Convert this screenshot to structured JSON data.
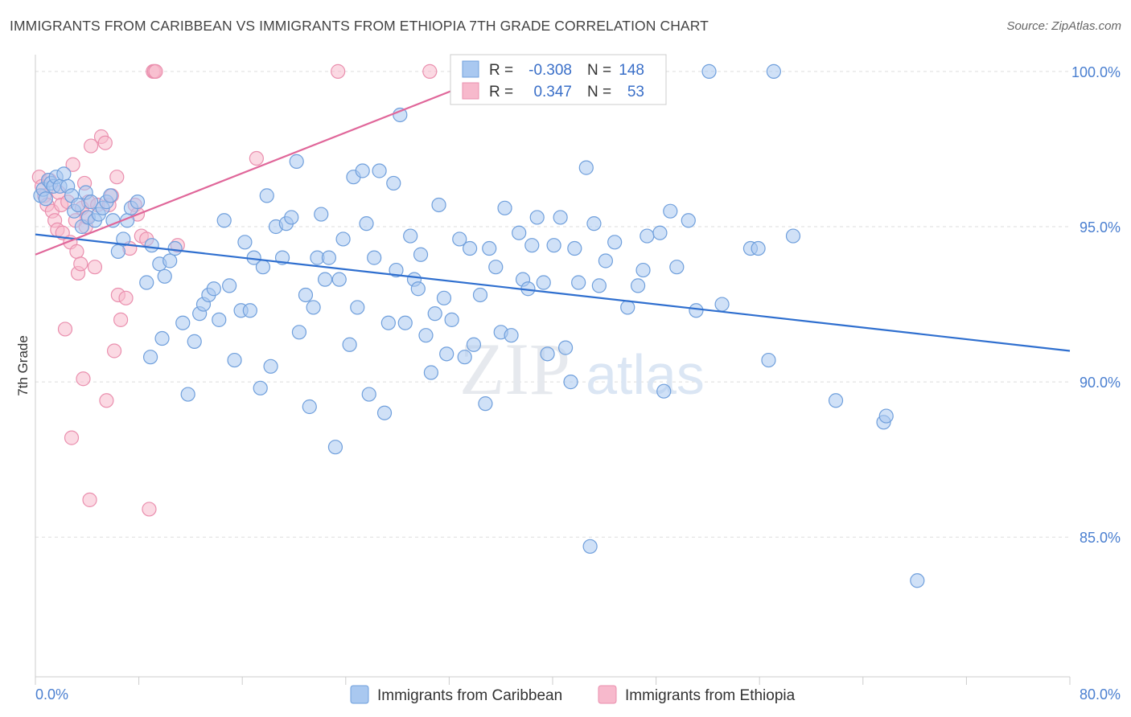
{
  "title": "IMMIGRANTS FROM CARIBBEAN VS IMMIGRANTS FROM ETHIOPIA 7TH GRADE CORRELATION CHART",
  "source": "Source: ZipAtlas.com",
  "watermark": {
    "zip": "ZIP",
    "atlas": "atlas"
  },
  "colors": {
    "caribbean_fill": "#a9c8f0",
    "caribbean_stroke": "#6f9fdc",
    "caribbean_line": "#2f6fcf",
    "ethiopia_fill": "#f7b9cc",
    "ethiopia_stroke": "#ea8fae",
    "ethiopia_line": "#e0679a",
    "tick_text": "#4a7fd0",
    "grid": "#dddddd"
  },
  "stats": {
    "caribbean": {
      "r_label": "R =",
      "r": "-0.308",
      "n_label": "N =",
      "n": "148"
    },
    "ethiopia": {
      "r_label": "R =",
      "r": "0.347",
      "n_label": "N =",
      "n": "53"
    }
  },
  "chart_data": {
    "type": "scatter",
    "xlabel": "",
    "ylabel": "7th Grade",
    "xlim": [
      0,
      80
    ],
    "ylim": [
      80.5,
      100.8
    ],
    "x_tick_labels": [
      "0.0%",
      "80.0%"
    ],
    "y_ticks": [
      85,
      90,
      95,
      100
    ],
    "y_tick_labels": [
      "85.0%",
      "90.0%",
      "95.0%",
      "100.0%"
    ],
    "grid": true,
    "legend_position": "bottom-center",
    "series": [
      {
        "name": "Immigrants from Caribbean",
        "color": "#a9c8f0",
        "trend": {
          "x": [
            0,
            80
          ],
          "y": [
            94.75,
            91.0
          ]
        },
        "points": [
          [
            0.4,
            96.0
          ],
          [
            0.6,
            96.2
          ],
          [
            0.8,
            95.9
          ],
          [
            1.0,
            96.5
          ],
          [
            1.2,
            96.4
          ],
          [
            1.4,
            96.3
          ],
          [
            1.6,
            96.6
          ],
          [
            1.9,
            96.3
          ],
          [
            2.2,
            96.7
          ],
          [
            2.5,
            96.3
          ],
          [
            2.8,
            96.0
          ],
          [
            3.0,
            95.5
          ],
          [
            3.3,
            95.7
          ],
          [
            3.6,
            95.0
          ],
          [
            3.9,
            96.1
          ],
          [
            4.1,
            95.3
          ],
          [
            4.3,
            95.8
          ],
          [
            4.6,
            95.2
          ],
          [
            4.9,
            95.4
          ],
          [
            5.2,
            95.6
          ],
          [
            5.5,
            95.8
          ],
          [
            5.8,
            96.0
          ],
          [
            6.0,
            95.2
          ],
          [
            6.4,
            94.2
          ],
          [
            6.8,
            94.6
          ],
          [
            7.1,
            95.2
          ],
          [
            7.4,
            95.6
          ],
          [
            7.9,
            95.8
          ],
          [
            8.6,
            93.2
          ],
          [
            9.0,
            94.4
          ],
          [
            9.6,
            93.8
          ],
          [
            10.0,
            93.4
          ],
          [
            10.4,
            93.9
          ],
          [
            10.8,
            94.3
          ],
          [
            8.9,
            90.8
          ],
          [
            9.8,
            91.4
          ],
          [
            11.4,
            91.9
          ],
          [
            11.8,
            89.6
          ],
          [
            12.3,
            91.3
          ],
          [
            12.7,
            92.2
          ],
          [
            13.0,
            92.5
          ],
          [
            13.4,
            92.8
          ],
          [
            13.8,
            93.0
          ],
          [
            14.2,
            92.0
          ],
          [
            14.6,
            95.2
          ],
          [
            15.0,
            93.1
          ],
          [
            15.4,
            90.7
          ],
          [
            15.9,
            92.3
          ],
          [
            16.2,
            94.5
          ],
          [
            16.6,
            92.3
          ],
          [
            16.9,
            94.0
          ],
          [
            17.4,
            89.8
          ],
          [
            17.6,
            93.7
          ],
          [
            17.9,
            96.0
          ],
          [
            18.2,
            90.5
          ],
          [
            18.6,
            95.0
          ],
          [
            19.1,
            94.0
          ],
          [
            19.4,
            95.1
          ],
          [
            19.8,
            95.3
          ],
          [
            20.2,
            97.1
          ],
          [
            20.4,
            91.6
          ],
          [
            20.9,
            92.8
          ],
          [
            21.2,
            89.2
          ],
          [
            21.5,
            92.4
          ],
          [
            21.8,
            94.0
          ],
          [
            22.1,
            95.4
          ],
          [
            22.4,
            93.3
          ],
          [
            22.7,
            94.0
          ],
          [
            23.2,
            87.9
          ],
          [
            23.5,
            93.3
          ],
          [
            23.8,
            94.6
          ],
          [
            24.3,
            91.2
          ],
          [
            24.6,
            96.6
          ],
          [
            24.9,
            92.4
          ],
          [
            25.3,
            96.8
          ],
          [
            25.6,
            95.1
          ],
          [
            25.8,
            89.6
          ],
          [
            26.2,
            94.0
          ],
          [
            26.6,
            96.8
          ],
          [
            27.0,
            89.0
          ],
          [
            27.3,
            91.9
          ],
          [
            27.7,
            96.4
          ],
          [
            27.9,
            93.6
          ],
          [
            28.2,
            98.6
          ],
          [
            28.6,
            91.9
          ],
          [
            29.0,
            94.7
          ],
          [
            29.3,
            93.3
          ],
          [
            29.6,
            93.0
          ],
          [
            29.8,
            94.1
          ],
          [
            30.2,
            91.5
          ],
          [
            30.6,
            90.3
          ],
          [
            30.9,
            92.2
          ],
          [
            31.2,
            95.7
          ],
          [
            31.6,
            92.7
          ],
          [
            31.8,
            90.9
          ],
          [
            32.2,
            92.0
          ],
          [
            32.8,
            94.6
          ],
          [
            33.2,
            90.8
          ],
          [
            33.6,
            94.3
          ],
          [
            33.9,
            91.2
          ],
          [
            34.4,
            92.8
          ],
          [
            34.8,
            89.3
          ],
          [
            35.1,
            94.3
          ],
          [
            35.6,
            93.7
          ],
          [
            36.0,
            91.6
          ],
          [
            36.3,
            95.6
          ],
          [
            36.8,
            91.5
          ],
          [
            37.4,
            94.8
          ],
          [
            37.7,
            93.3
          ],
          [
            38.1,
            93.0
          ],
          [
            38.4,
            94.4
          ],
          [
            38.8,
            95.3
          ],
          [
            39.3,
            93.2
          ],
          [
            39.6,
            90.9
          ],
          [
            40.1,
            94.4
          ],
          [
            40.6,
            95.3
          ],
          [
            41.0,
            91.1
          ],
          [
            41.4,
            90.0
          ],
          [
            41.7,
            94.3
          ],
          [
            42.0,
            93.2
          ],
          [
            42.6,
            96.9
          ],
          [
            42.9,
            84.7
          ],
          [
            43.2,
            95.1
          ],
          [
            43.6,
            93.1
          ],
          [
            44.1,
            93.9
          ],
          [
            44.8,
            94.5
          ],
          [
            45.8,
            92.4
          ],
          [
            46.6,
            93.1
          ],
          [
            47.0,
            93.6
          ],
          [
            47.3,
            94.7
          ],
          [
            48.3,
            94.8
          ],
          [
            48.6,
            89.7
          ],
          [
            49.1,
            95.5
          ],
          [
            49.6,
            93.7
          ],
          [
            50.5,
            95.2
          ],
          [
            51.1,
            92.3
          ],
          [
            52.1,
            100.0
          ],
          [
            53.1,
            92.5
          ],
          [
            55.3,
            94.3
          ],
          [
            55.9,
            94.3
          ],
          [
            56.7,
            90.7
          ],
          [
            57.1,
            100.0
          ],
          [
            58.6,
            94.7
          ],
          [
            61.9,
            89.4
          ],
          [
            65.6,
            88.7
          ],
          [
            65.8,
            88.9
          ],
          [
            68.2,
            83.6
          ]
        ]
      },
      {
        "name": "Immigrants from Ethiopia",
        "color": "#f7b9cc",
        "trend": {
          "x": [
            0,
            36
          ],
          "y": [
            94.1,
            100.0
          ]
        },
        "points": [
          [
            0.3,
            96.6
          ],
          [
            0.5,
            96.3
          ],
          [
            0.7,
            96.0
          ],
          [
            0.9,
            95.7
          ],
          [
            1.1,
            96.5
          ],
          [
            1.3,
            95.5
          ],
          [
            1.5,
            95.2
          ],
          [
            1.7,
            94.9
          ],
          [
            1.8,
            96.1
          ],
          [
            2.0,
            95.7
          ],
          [
            2.1,
            94.8
          ],
          [
            2.3,
            91.7
          ],
          [
            2.5,
            95.8
          ],
          [
            2.7,
            94.5
          ],
          [
            2.8,
            88.2
          ],
          [
            2.9,
            97.0
          ],
          [
            3.1,
            95.2
          ],
          [
            3.2,
            94.2
          ],
          [
            3.3,
            93.5
          ],
          [
            3.5,
            93.8
          ],
          [
            3.6,
            95.6
          ],
          [
            3.7,
            90.1
          ],
          [
            3.8,
            96.4
          ],
          [
            3.9,
            95.0
          ],
          [
            4.0,
            95.3
          ],
          [
            4.1,
            95.8
          ],
          [
            4.2,
            86.2
          ],
          [
            4.3,
            97.6
          ],
          [
            4.6,
            93.7
          ],
          [
            4.8,
            95.7
          ],
          [
            5.1,
            97.9
          ],
          [
            5.4,
            97.7
          ],
          [
            5.5,
            89.4
          ],
          [
            5.7,
            95.7
          ],
          [
            5.9,
            96.0
          ],
          [
            6.1,
            91.0
          ],
          [
            6.3,
            96.6
          ],
          [
            6.4,
            92.8
          ],
          [
            6.6,
            92.0
          ],
          [
            7.0,
            92.7
          ],
          [
            7.3,
            94.3
          ],
          [
            7.7,
            95.7
          ],
          [
            7.9,
            95.4
          ],
          [
            8.2,
            94.7
          ],
          [
            8.6,
            94.6
          ],
          [
            8.8,
            85.9
          ],
          [
            9.1,
            100.0
          ],
          [
            9.2,
            100.0
          ],
          [
            9.3,
            100.0
          ],
          [
            11.0,
            94.4
          ],
          [
            17.1,
            97.2
          ],
          [
            23.4,
            100.0
          ],
          [
            30.5,
            100.0
          ]
        ]
      }
    ]
  }
}
